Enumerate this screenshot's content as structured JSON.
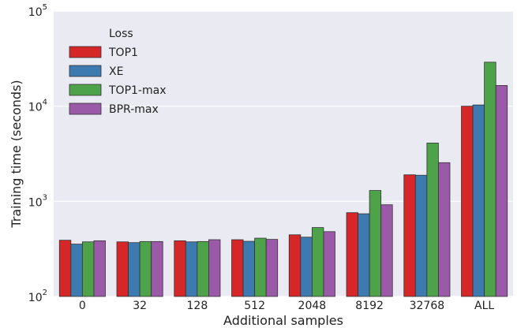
{
  "chart_data": {
    "type": "bar",
    "xlabel": "Additional samples",
    "ylabel": "Training time (seconds)",
    "yscale": "log",
    "ylim": [
      100,
      100000
    ],
    "grid": true,
    "legend_placement": "top-left",
    "legend_title": "Loss",
    "y_ticks": [
      {
        "base": "10",
        "exp": "2",
        "value": 100
      },
      {
        "base": "10",
        "exp": "3",
        "value": 1000
      },
      {
        "base": "10",
        "exp": "4",
        "value": 10000
      },
      {
        "base": "10",
        "exp": "5",
        "value": 100000
      }
    ],
    "categories": [
      "0",
      "32",
      "128",
      "512",
      "2048",
      "8192",
      "32768",
      "ALL"
    ],
    "series": [
      {
        "name": "TOP1",
        "color": "#d62728",
        "values": [
          390,
          375,
          385,
          395,
          445,
          760,
          1900,
          10000
        ]
      },
      {
        "name": "XE",
        "color": "#3d7ab0",
        "values": [
          355,
          368,
          375,
          380,
          420,
          740,
          1880,
          10300
        ]
      },
      {
        "name": "TOP1-max",
        "color": "#4ea24a",
        "values": [
          375,
          378,
          378,
          410,
          530,
          1300,
          4100,
          29000
        ]
      },
      {
        "name": "BPR-max",
        "color": "#9a5aa8",
        "values": [
          385,
          378,
          395,
          398,
          480,
          920,
          2550,
          16500
        ]
      }
    ]
  }
}
